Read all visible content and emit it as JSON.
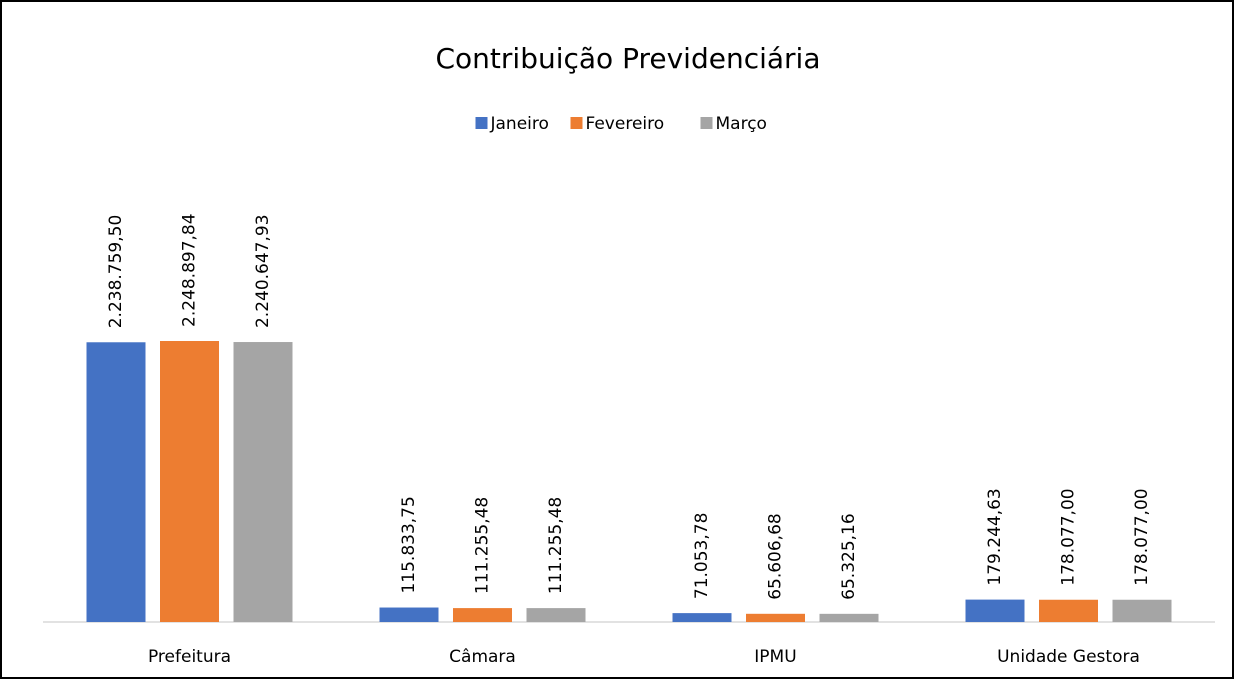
{
  "chart_data": {
    "type": "bar",
    "title": "Contribuição Previdenciária",
    "categories": [
      "Prefeitura",
      "Câmara",
      "IPMU",
      "Unidade Gestora"
    ],
    "series": [
      {
        "name": "Janeiro",
        "color": "#4472c4",
        "values": [
          2238759.5,
          115833.75,
          71053.78,
          179244.63
        ],
        "value_labels": [
          "2.238.759,50",
          "115.833,75",
          "71.053,78",
          "179.244,63"
        ]
      },
      {
        "name": "Fevereiro",
        "color": "#ed7d31",
        "values": [
          2248897.84,
          111255.48,
          65606.68,
          178077.0
        ],
        "value_labels": [
          "2.248.897,84",
          "111.255,48",
          "65.606,68",
          "178.077,00"
        ]
      },
      {
        "name": "Março",
        "color": "#a5a5a5",
        "values": [
          2240647.93,
          111255.48,
          65325.16,
          178077.0
        ],
        "value_labels": [
          "2.240.647,93",
          "111.255,48",
          "65.325,16",
          "178.077,00"
        ]
      }
    ],
    "legend": "top"
  }
}
